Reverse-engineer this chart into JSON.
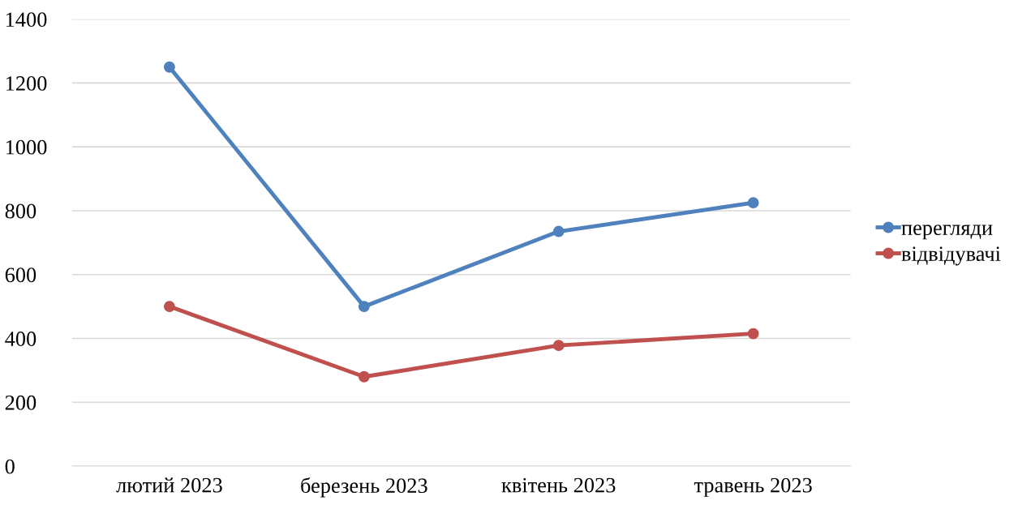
{
  "chart_data": {
    "type": "line",
    "categories": [
      "лютий 2023",
      "березень 2023",
      "квітень 2023",
      "травень 2023"
    ],
    "series": [
      {
        "name": "перегляди",
        "color": "#4f81bd",
        "values": [
          1250,
          500,
          735,
          825
        ]
      },
      {
        "name": "відвідувачі",
        "color": "#c0504d",
        "values": [
          500,
          280,
          378,
          415
        ]
      }
    ],
    "ylim": [
      0,
      1400
    ],
    "yticks": [
      0,
      200,
      400,
      600,
      800,
      1000,
      1200,
      1400
    ],
    "grid": "y",
    "legend": "right",
    "marker": "circle",
    "line_style": "solid"
  }
}
